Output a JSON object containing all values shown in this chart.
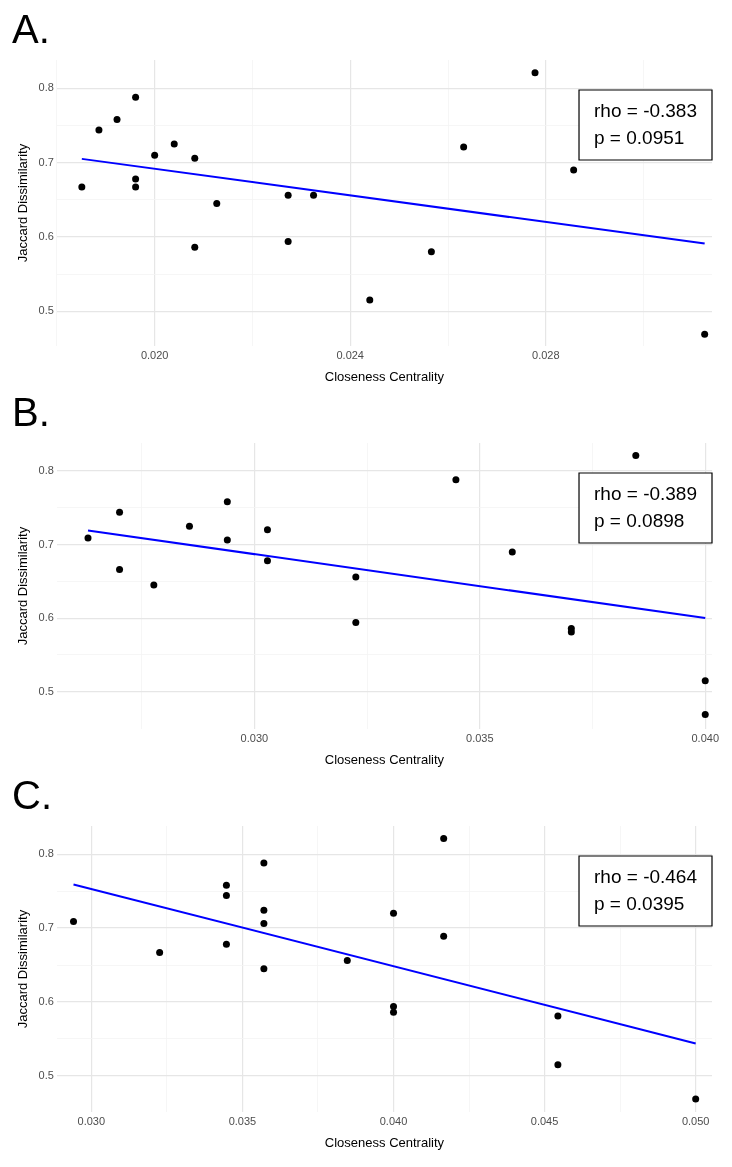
{
  "chart_data": [
    {
      "type": "scatter",
      "title": "A.",
      "xlabel": "Closeness Centrality",
      "ylabel": "Jaccard Dissimilarity",
      "annotations": [
        "rho = -0.383",
        "p = 0.0951"
      ],
      "legend": false,
      "grid": true,
      "xlim": [
        0.018,
        0.0314
      ],
      "ylim": [
        0.453,
        0.838
      ],
      "xticks": [
        {
          "value": 0.018,
          "label": null
        },
        {
          "value": 0.02,
          "label": "0.020"
        },
        {
          "value": 0.022,
          "label": null
        },
        {
          "value": 0.024,
          "label": "0.024"
        },
        {
          "value": 0.026,
          "label": null
        },
        {
          "value": 0.028,
          "label": "0.028"
        },
        {
          "value": 0.03,
          "label": null
        }
      ],
      "yticks": [
        0.5,
        {
          "value": 0.55,
          "label": null
        },
        0.6,
        {
          "value": 0.65,
          "label": null
        },
        0.7,
        {
          "value": 0.75,
          "label": null
        },
        0.8
      ],
      "series": [
        {
          "marker": "circle",
          "color": "#000000",
          "x": [
            0.01851,
            0.01886,
            0.01923,
            0.01961,
            0.01961,
            0.01961,
            0.02,
            0.0204,
            0.02082,
            0.02082,
            0.02127,
            0.02273,
            0.02273,
            0.02325,
            0.0244,
            0.02566,
            0.02632,
            0.02778,
            0.02857,
            0.03125
          ],
          "values": [
            0.667,
            0.744,
            0.758,
            0.788,
            0.678,
            0.667,
            0.71,
            0.725,
            0.706,
            0.586,
            0.645,
            0.656,
            0.594,
            0.656,
            0.515,
            0.58,
            0.721,
            0.821,
            0.69,
            0.469
          ]
        },
        {
          "type": "line",
          "marker": "none",
          "color": "#0000ff",
          "x": [
            0.01851,
            0.03125
          ],
          "values": [
            0.705,
            0.591
          ]
        }
      ]
    },
    {
      "type": "scatter",
      "title": "B.",
      "xlabel": "Closeness Centrality",
      "ylabel": "Jaccard Dissimilarity",
      "annotations": [
        "rho = -0.389",
        "p = 0.0898"
      ],
      "legend": false,
      "grid": true,
      "xlim": [
        0.02562,
        0.04015
      ],
      "ylim": [
        0.449,
        0.838
      ],
      "xticks": [
        {
          "value": 0.0275,
          "label": null
        },
        {
          "value": 0.03,
          "label": "0.030"
        },
        {
          "value": 0.0325,
          "label": null
        },
        {
          "value": 0.035,
          "label": "0.035"
        },
        {
          "value": 0.0375,
          "label": null
        },
        {
          "value": 0.04,
          "label": "0.040"
        }
      ],
      "yticks": [
        0.5,
        {
          "value": 0.55,
          "label": null
        },
        0.6,
        {
          "value": 0.65,
          "label": null
        },
        0.7,
        {
          "value": 0.75,
          "label": null
        },
        0.8
      ],
      "series": [
        {
          "marker": "circle",
          "color": "#000000",
          "x": [
            0.02631,
            0.02701,
            0.02701,
            0.02777,
            0.02856,
            0.0294,
            0.0294,
            0.03029,
            0.03029,
            0.03225,
            0.03225,
            0.03447,
            0.03572,
            0.03703,
            0.03703,
            0.03846,
            0.04,
            0.04
          ],
          "values": [
            0.709,
            0.744,
            0.666,
            0.645,
            0.725,
            0.758,
            0.706,
            0.72,
            0.678,
            0.656,
            0.594,
            0.788,
            0.69,
            0.586,
            0.581,
            0.821,
            0.515,
            0.469
          ]
        },
        {
          "type": "line",
          "marker": "none",
          "color": "#0000ff",
          "x": [
            0.02631,
            0.04
          ],
          "values": [
            0.719,
            0.6
          ]
        }
      ]
    },
    {
      "type": "scatter",
      "title": "C.",
      "xlabel": "Closeness Centrality",
      "ylabel": "Jaccard Dissimilarity",
      "annotations": [
        "rho = -0.464",
        "p = 0.0395"
      ],
      "legend": false,
      "grid": true,
      "xlim": [
        0.02886,
        0.05054
      ],
      "ylim": [
        0.451,
        0.838
      ],
      "xticks": [
        {
          "value": 0.03,
          "label": "0.030"
        },
        {
          "value": 0.0325,
          "label": null
        },
        {
          "value": 0.035,
          "label": "0.035"
        },
        {
          "value": 0.0375,
          "label": null
        },
        {
          "value": 0.04,
          "label": "0.040"
        },
        {
          "value": 0.0425,
          "label": null
        },
        {
          "value": 0.045,
          "label": "0.045"
        },
        {
          "value": 0.0475,
          "label": null
        },
        {
          "value": 0.05,
          "label": "0.050"
        }
      ],
      "yticks": [
        0.5,
        {
          "value": 0.55,
          "label": null
        },
        0.6,
        {
          "value": 0.65,
          "label": null
        },
        0.7,
        {
          "value": 0.75,
          "label": null
        },
        0.8
      ],
      "series": [
        {
          "marker": "circle",
          "color": "#000000",
          "x": [
            0.02941,
            0.03226,
            0.03447,
            0.03447,
            0.03447,
            0.03571,
            0.03571,
            0.03571,
            0.03571,
            0.03847,
            0.04,
            0.04,
            0.04,
            0.04166,
            0.04166,
            0.04544,
            0.04544,
            0.05
          ],
          "values": [
            0.709,
            0.667,
            0.758,
            0.744,
            0.678,
            0.788,
            0.724,
            0.706,
            0.645,
            0.656,
            0.72,
            0.594,
            0.586,
            0.821,
            0.689,
            0.581,
            0.515,
            0.469
          ]
        },
        {
          "type": "line",
          "marker": "none",
          "color": "#0000ff",
          "x": [
            0.02941,
            0.05
          ],
          "values": [
            0.759,
            0.544
          ]
        }
      ]
    }
  ]
}
